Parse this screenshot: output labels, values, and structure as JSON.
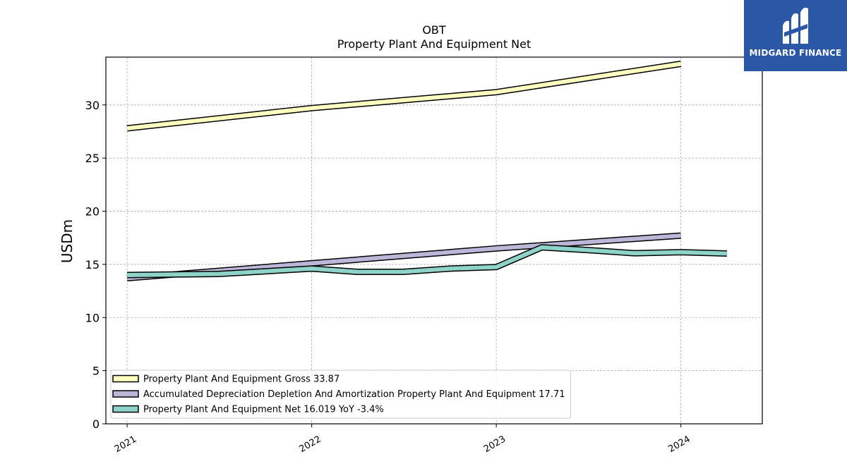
{
  "chart_data": {
    "type": "line",
    "title": "OBT",
    "subtitle": "Property Plant And Equipment Net",
    "ylabel": "USDm",
    "xlabel": "",
    "ylim": [
      0,
      34.5
    ],
    "yticks": [
      0,
      5,
      10,
      15,
      20,
      25,
      30
    ],
    "xticks": [
      "2021",
      "2022",
      "2023",
      "2024"
    ],
    "grid": true,
    "legend_position": "bottom-left",
    "series": [
      {
        "name": "Property Plant And Equipment Gross",
        "legend_label": "Property Plant And Equipment Gross  33.87",
        "color": "#ffffbf",
        "x": [
          "2021-01-01",
          "2022-01-01",
          "2023-01-01",
          "2024-01-01"
        ],
        "y": [
          27.8,
          29.7,
          31.2,
          33.87
        ]
      },
      {
        "name": "Accumulated Depreciation Depletion And Amortization Property Plant And Equipment",
        "legend_label": "Accumulated Depreciation Depletion And Amortization Property Plant And Equipment  17.71",
        "color": "#bcb6d8",
        "x": [
          "2021-01-01",
          "2022-01-01",
          "2023-01-01",
          "2024-01-01"
        ],
        "y": [
          13.7,
          15.1,
          16.5,
          17.71
        ]
      },
      {
        "name": "Property Plant And Equipment Net",
        "legend_label": "Property Plant And Equipment Net  16.019 YoY -3.4%",
        "color": "#8dd3c7",
        "x": [
          "2021-01-01",
          "2021-07-01",
          "2022-01-01",
          "2022-04-01",
          "2022-07-01",
          "2022-10-01",
          "2023-01-01",
          "2023-04-01",
          "2023-07-01",
          "2023-10-01",
          "2024-01-01",
          "2024-04-01"
        ],
        "y": [
          14.0,
          14.1,
          14.6,
          14.3,
          14.3,
          14.6,
          14.75,
          16.6,
          16.35,
          16.05,
          16.15,
          16.02
        ]
      }
    ]
  },
  "logo": {
    "text": "MIDGARD FINANCE"
  }
}
